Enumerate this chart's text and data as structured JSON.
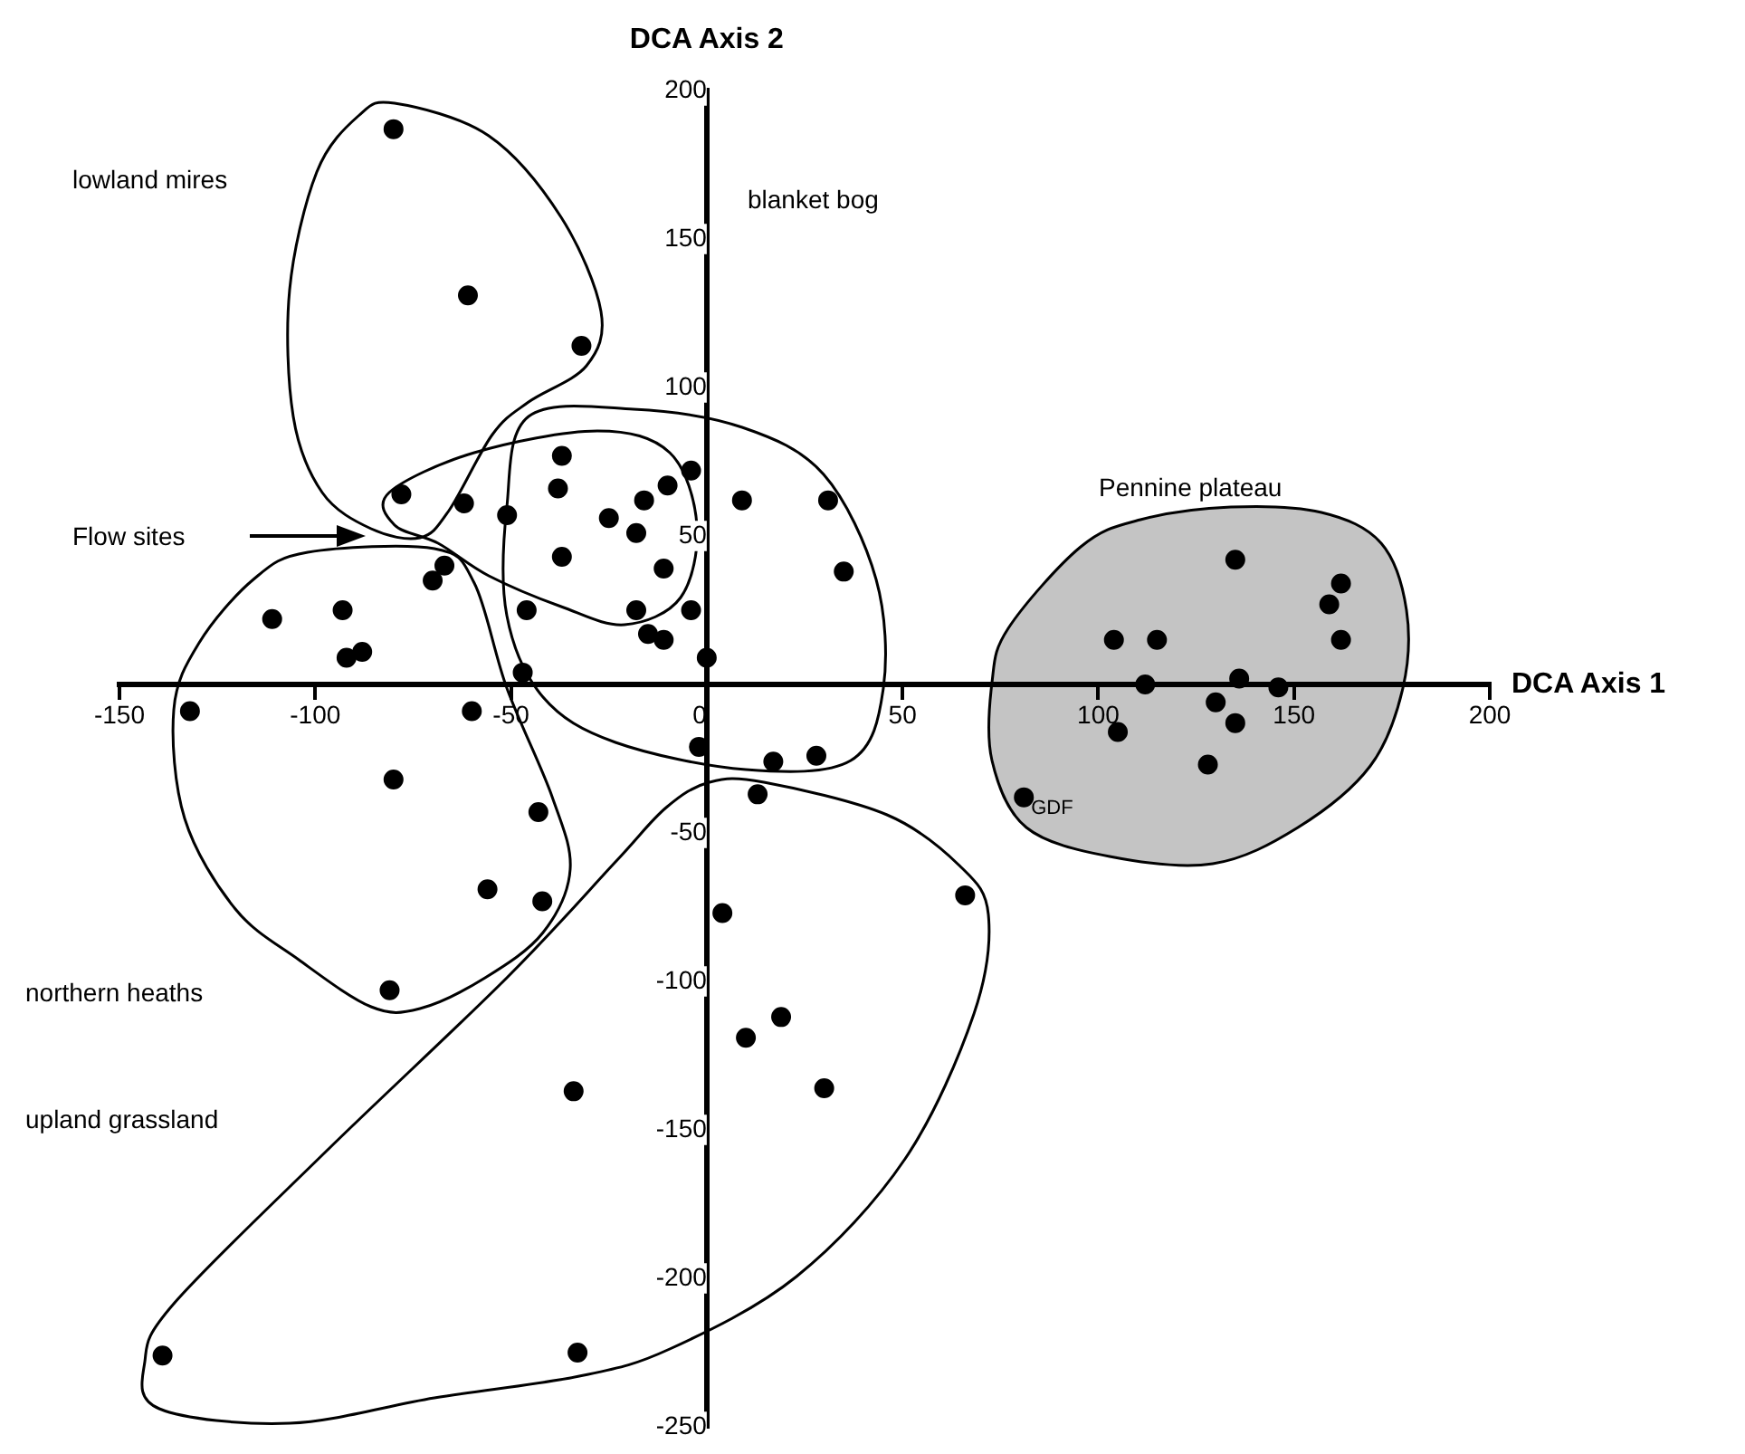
{
  "chart_data": {
    "type": "scatter",
    "xlabel": "DCA Axis 1",
    "ylabel": "DCA Axis 2",
    "annotations": [
      "lowland mires",
      "blanket bog",
      "Pennine plateau",
      "Flow sites",
      "northern heaths",
      "upland grassland",
      {
        "text": "GDF",
        "x": 81,
        "y": -38
      }
    ],
    "x": [
      -80,
      -61,
      -32,
      -78,
      -62,
      -51,
      -37,
      -38,
      -37,
      -25,
      -18,
      -16,
      -10,
      -4,
      -11,
      9,
      31,
      35,
      -67,
      -70,
      -46,
      -18,
      -4,
      -15,
      -11,
      0,
      -47,
      -111,
      -93,
      -92,
      -88,
      -132,
      -60,
      -2,
      17,
      28,
      -80,
      13,
      -43,
      -56,
      -42,
      4,
      66,
      -81,
      19,
      10,
      30,
      -34,
      -139,
      -33,
      135,
      162,
      159,
      162,
      104,
      115,
      112,
      136,
      146,
      130,
      135,
      105,
      128,
      81
    ],
    "series": [
      {
        "color": "#000000",
        "values": [
          187,
          131,
          114,
          64,
          61,
          57,
          77,
          66,
          43,
          56,
          51,
          62,
          67,
          72,
          39,
          62,
          62,
          38,
          40,
          35,
          25,
          25,
          25,
          17,
          15,
          9,
          4,
          22,
          25,
          9,
          11,
          -9,
          -9,
          -21,
          -26,
          -24,
          -32,
          -37,
          -43,
          -69,
          -73,
          -77,
          -71,
          -103,
          -112,
          -119,
          -136,
          -137,
          -226,
          -225,
          42,
          34,
          27,
          15,
          15,
          15,
          0,
          2,
          -1,
          -6,
          -13,
          -16,
          -27,
          -38
        ]
      }
    ],
    "xlim": [
      -150,
      200
    ],
    "ylim": [
      -250,
      200
    ],
    "xticks": [
      -150,
      -100,
      -50,
      0,
      50,
      100,
      150,
      200
    ],
    "yticks": [
      -250,
      -200,
      -150,
      -100,
      -50,
      {
        "value": 0,
        "label": null
      },
      50,
      100,
      150,
      200
    ],
    "grid": false,
    "legend": false,
    "marker": "circle"
  }
}
